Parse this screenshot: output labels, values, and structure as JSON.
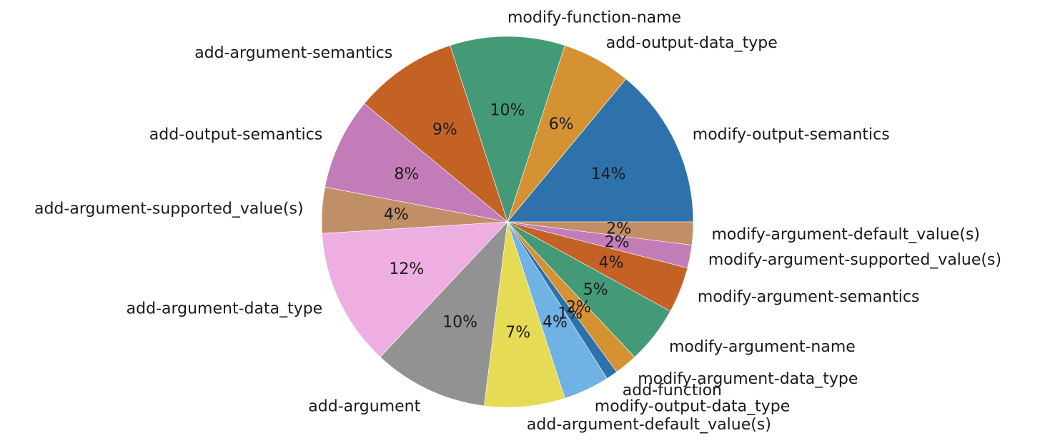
{
  "chart_data": {
    "type": "pie",
    "title": "",
    "start_angle_deg": 0,
    "direction": "counterclockwise",
    "slices": [
      {
        "label": "modify-output-semantics",
        "pct_label": "14%",
        "value": 14,
        "color": "#2e72ab"
      },
      {
        "label": "add-output-data_type",
        "pct_label": "6%",
        "value": 6,
        "color": "#d49233"
      },
      {
        "label": "modify-function-name",
        "pct_label": "10%",
        "value": 10,
        "color": "#449a77"
      },
      {
        "label": "add-argument-semantics",
        "pct_label": "9%",
        "value": 9,
        "color": "#c46226"
      },
      {
        "label": "add-output-semantics",
        "pct_label": "8%",
        "value": 8,
        "color": "#c27db9"
      },
      {
        "label": "add-argument-supported_value(s)",
        "pct_label": "4%",
        "value": 4,
        "color": "#c18f67"
      },
      {
        "label": "add-argument-data_type",
        "pct_label": "12%",
        "value": 12,
        "color": "#eeaee1"
      },
      {
        "label": "add-argument",
        "pct_label": "10%",
        "value": 10,
        "color": "#929292"
      },
      {
        "label": "add-argument-default_value(s)",
        "pct_label": "7%",
        "value": 7,
        "color": "#e6db55"
      },
      {
        "label": "modify-output-data_type",
        "pct_label": "4%",
        "value": 4,
        "color": "#6fb2e3"
      },
      {
        "label": "add-function",
        "pct_label": "1%",
        "value": 1,
        "color": "#2e72ab"
      },
      {
        "label": "modify-argument-data_type",
        "pct_label": "2%",
        "value": 2,
        "color": "#d49233"
      },
      {
        "label": "modify-argument-name",
        "pct_label": "5%",
        "value": 5,
        "color": "#449a77"
      },
      {
        "label": "modify-argument-semantics",
        "pct_label": "4%",
        "value": 4,
        "color": "#c46226"
      },
      {
        "label": "modify-argument-supported_value(s)",
        "pct_label": "2%",
        "value": 2,
        "color": "#c27db9"
      },
      {
        "label": "modify-argument-default_value(s)",
        "pct_label": "2%",
        "value": 2,
        "color": "#c18f67"
      }
    ]
  }
}
